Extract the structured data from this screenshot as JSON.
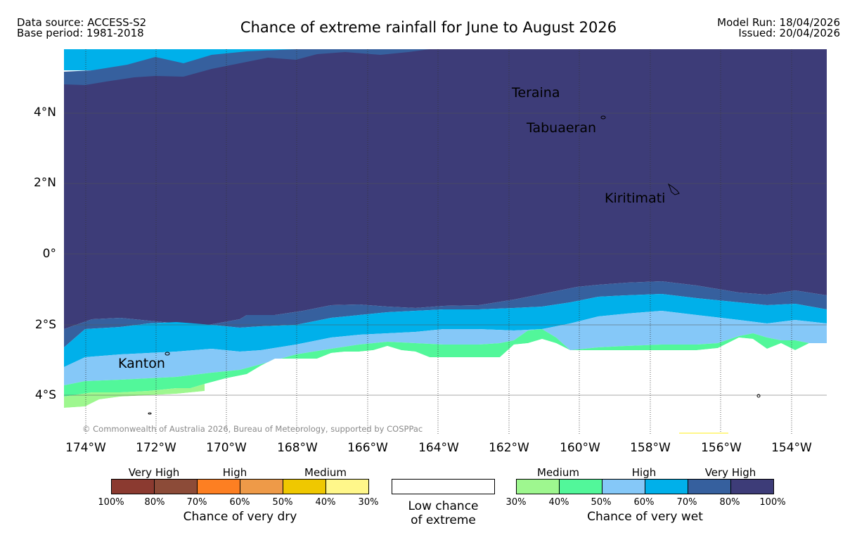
{
  "header": {
    "data_source": "Data source: ACCESS-S2",
    "base_period": "Base period: 1981-2018",
    "title": "Chance of extreme rainfall for June to August 2026",
    "model_run": "Model Run: 18/04/2026",
    "issued": "Issued: 20/04/2026"
  },
  "map": {
    "lat_labels": [
      "4°N",
      "2°N",
      "0°",
      "2°S",
      "4°S"
    ],
    "lon_labels": [
      "174°W",
      "172°W",
      "170°W",
      "168°W",
      "166°W",
      "164°W",
      "162°W",
      "160°W",
      "158°W",
      "156°W",
      "154°W"
    ],
    "places": [
      "Teraina",
      "Tabuaeran",
      "Kiritimati",
      "Kanton"
    ],
    "copyright": "© Commonwealth of Australia 2026, Bureau of Meteorology, supported by COSPPac"
  },
  "legend": {
    "dry": {
      "categories": [
        "Very High",
        "High",
        "Medium"
      ],
      "percents": [
        "100%",
        "80%",
        "70%",
        "60%",
        "50%",
        "40%",
        "30%"
      ],
      "colors": [
        "#8b3a30",
        "#8c4b38",
        "#fd7f22",
        "#ee9a48",
        "#efc800",
        "#fff78a"
      ],
      "title": "Chance of very dry"
    },
    "low": {
      "line1": "Low chance",
      "line2": "of extreme"
    },
    "wet": {
      "categories": [
        "Medium",
        "High",
        "Very High"
      ],
      "percents": [
        "30%",
        "40%",
        "50%",
        "60%",
        "70%",
        "80%",
        "100%"
      ],
      "colors": [
        "#9ef78f",
        "#52f79a",
        "#85c8f8",
        "#00b0ea",
        "#36609e",
        "#3d3c78"
      ],
      "title": "Chance of very wet"
    }
  }
}
